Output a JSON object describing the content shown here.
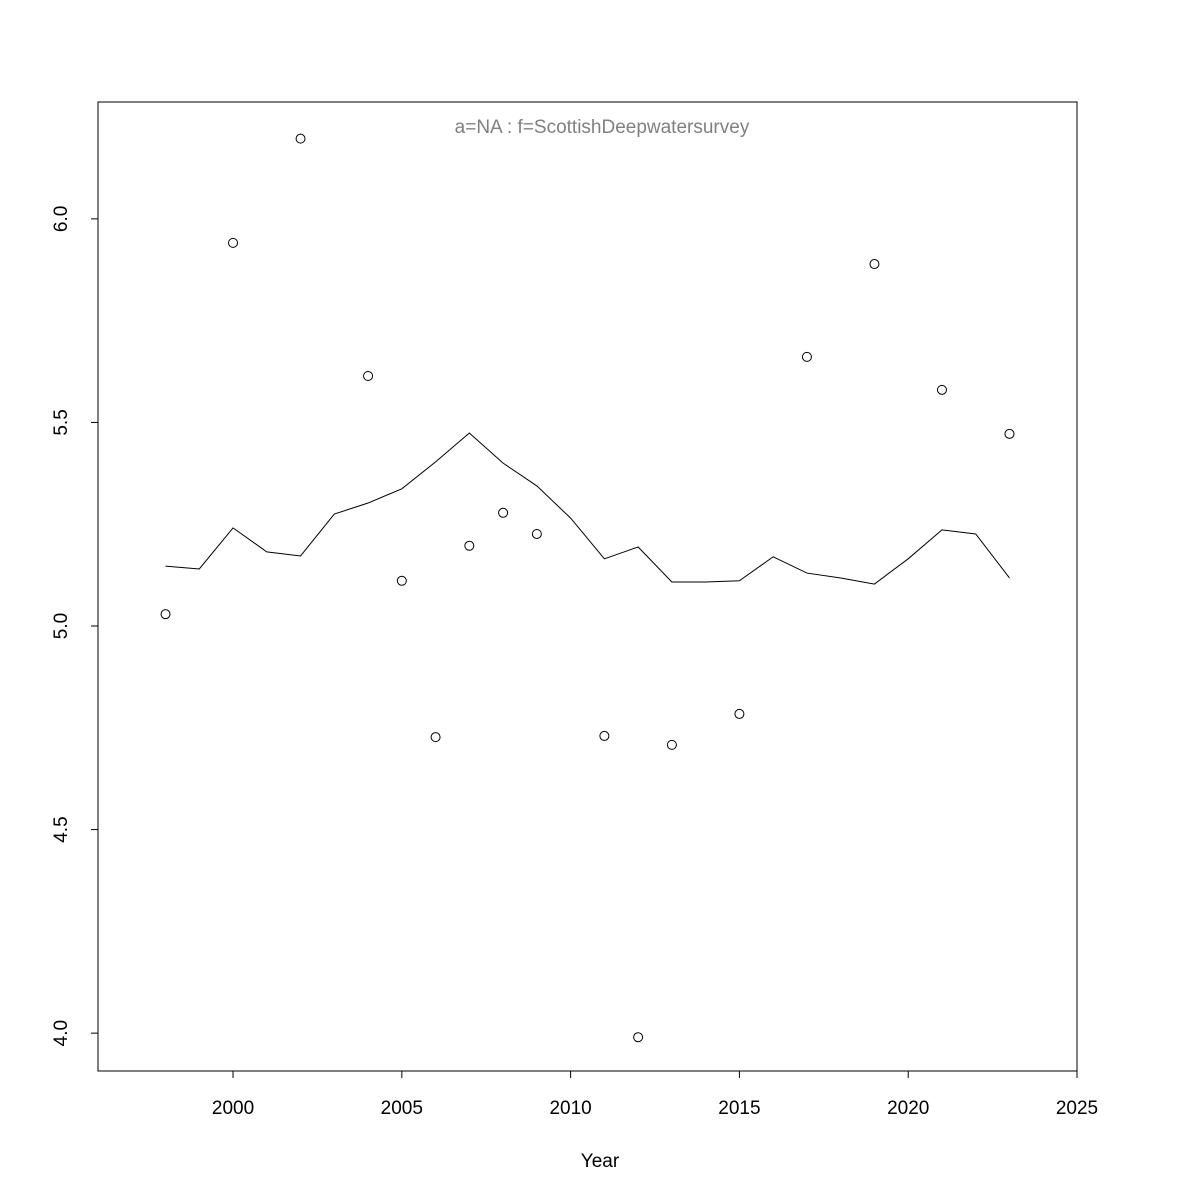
{
  "chart_data": {
    "type": "line",
    "title": "a=NA  :  f=ScottishDeepwatersurvey",
    "x_label": "Year",
    "x": [
      1998,
      1999,
      2000,
      2001,
      2002,
      2003,
      2004,
      2005,
      2006,
      2007,
      2008,
      2009,
      2010,
      2011,
      2012,
      2013,
      2014,
      2015,
      2016,
      2017,
      2018,
      2019,
      2020,
      2021,
      2022,
      2023
    ],
    "series": [
      {
        "style": "points",
        "color": "#000000",
        "values": [
          5.029,
          null,
          5.941,
          null,
          6.197,
          null,
          5.614,
          5.111,
          4.727,
          5.197,
          5.278,
          5.226,
          null,
          4.73,
          3.99,
          4.708,
          null,
          4.784,
          null,
          5.661,
          null,
          5.889,
          null,
          5.58,
          null,
          5.472
        ]
      },
      {
        "style": "line",
        "color": "#000000",
        "values": [
          5.147,
          5.14,
          5.241,
          5.182,
          5.172,
          5.275,
          5.302,
          5.337,
          5.403,
          5.474,
          5.4,
          5.344,
          5.265,
          5.165,
          5.194,
          5.108,
          5.108,
          5.111,
          5.17,
          5.13,
          5.118,
          5.103,
          5.165,
          5.236,
          5.226,
          5.118
        ]
      }
    ],
    "xlim": [
      1996,
      2025
    ],
    "xticks": [
      2000,
      2005,
      2010,
      2015,
      2020,
      2025
    ],
    "ylim": [
      3.907,
      6.287
    ],
    "yticks": [
      {
        "value": 4,
        "label": "4.0"
      },
      4.5,
      {
        "value": 5,
        "label": "5.0"
      },
      5.5,
      {
        "value": 6,
        "label": "6.0"
      }
    ]
  }
}
